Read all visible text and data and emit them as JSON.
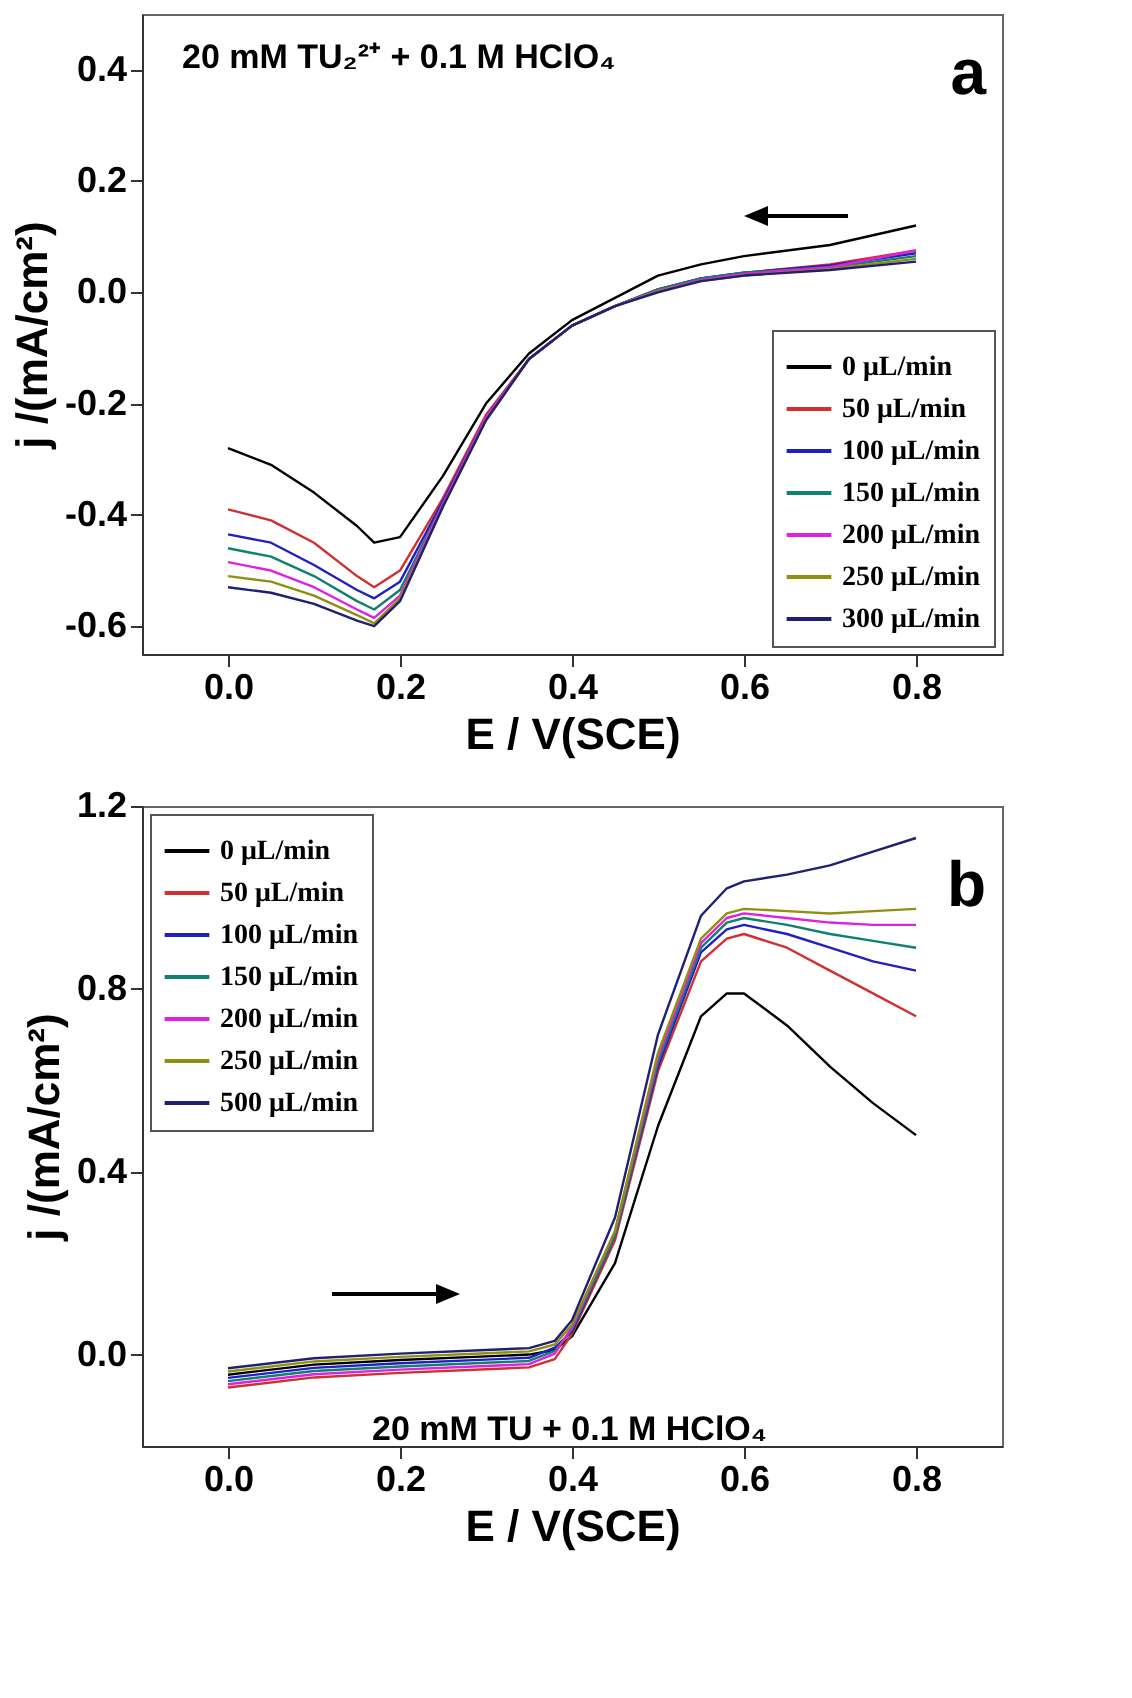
{
  "chart_data": [
    {
      "type": "line",
      "xlabel": "E / V(SCE)",
      "ylabel": "j /(mA/cm²)",
      "x": [
        0,
        0.05,
        0.1,
        0.15,
        0.17,
        0.2,
        0.25,
        0.3,
        0.35,
        0.4,
        0.45,
        0.5,
        0.55,
        0.6,
        0.7,
        0.8
      ],
      "series": [
        {
          "name": "0 μL/min",
          "color": "#000000",
          "values": [
            -0.28,
            -0.31,
            -0.36,
            -0.42,
            -0.45,
            -0.44,
            -0.33,
            -0.2,
            -0.11,
            -0.05,
            -0.01,
            0.03,
            0.05,
            0.065,
            0.085,
            0.12
          ]
        },
        {
          "name": "50 μL/min",
          "color": "#d03030",
          "values": [
            -0.39,
            -0.41,
            -0.45,
            -0.51,
            -0.53,
            -0.5,
            -0.37,
            -0.22,
            -0.12,
            -0.06,
            -0.025,
            0.005,
            0.025,
            0.035,
            0.05,
            0.075
          ]
        },
        {
          "name": "100 μL/min",
          "color": "#2020c0",
          "values": [
            -0.435,
            -0.45,
            -0.49,
            -0.535,
            -0.55,
            -0.52,
            -0.375,
            -0.225,
            -0.12,
            -0.06,
            -0.025,
            0.005,
            0.025,
            0.035,
            0.048,
            0.07
          ]
        },
        {
          "name": "150 μL/min",
          "color": "#108070",
          "values": [
            -0.46,
            -0.475,
            -0.51,
            -0.555,
            -0.57,
            -0.535,
            -0.38,
            -0.225,
            -0.12,
            -0.06,
            -0.025,
            0.005,
            0.025,
            0.035,
            0.045,
            0.065
          ]
        },
        {
          "name": "200 μL/min",
          "color": "#e020e0",
          "values": [
            -0.485,
            -0.5,
            -0.53,
            -0.57,
            -0.585,
            -0.545,
            -0.38,
            -0.225,
            -0.12,
            -0.06,
            -0.025,
            0.003,
            0.022,
            0.033,
            0.045,
            0.075
          ]
        },
        {
          "name": "250 μL/min",
          "color": "#909010",
          "values": [
            -0.51,
            -0.52,
            -0.545,
            -0.58,
            -0.595,
            -0.55,
            -0.385,
            -0.23,
            -0.12,
            -0.06,
            -0.025,
            0.002,
            0.02,
            0.03,
            0.042,
            0.06
          ]
        },
        {
          "name": "300 μL/min",
          "color": "#202070",
          "values": [
            -0.53,
            -0.54,
            -0.56,
            -0.59,
            -0.6,
            -0.555,
            -0.385,
            -0.23,
            -0.12,
            -0.06,
            -0.025,
            0,
            0.02,
            0.03,
            0.04,
            0.055
          ]
        }
      ],
      "xlim": [
        -0.1,
        0.9
      ],
      "xticks": [
        {
          "value": 0,
          "label": "0.0"
        },
        0.2,
        0.4,
        0.6,
        0.8
      ],
      "ylim": [
        -0.65,
        0.5
      ],
      "yticks": [
        -0.6,
        -0.4,
        -0.2,
        {
          "value": 0,
          "label": "0.0"
        },
        0.2,
        0.4
      ],
      "legend": "bottom right",
      "grid": false,
      "annotations": [
        "20 mM TU₂²⁺ + 0.1 M HClO₄",
        "a"
      ]
    },
    {
      "type": "line",
      "xlabel": "E / V(SCE)",
      "ylabel": "j /(mA/cm²)",
      "x": [
        0,
        0.1,
        0.2,
        0.3,
        0.35,
        0.38,
        0.4,
        0.45,
        0.5,
        0.55,
        0.58,
        0.6,
        0.65,
        0.7,
        0.75,
        0.8
      ],
      "series": [
        {
          "name": "0 μL/min",
          "color": "#000000",
          "values": [
            -0.044,
            -0.022,
            -0.012,
            -0.004,
            0,
            0.01,
            0.04,
            0.2,
            0.5,
            0.74,
            0.79,
            0.79,
            0.72,
            0.63,
            0.55,
            0.48
          ]
        },
        {
          "name": "50 μL/min",
          "color": "#d03030",
          "values": [
            -0.072,
            -0.05,
            -0.04,
            -0.032,
            -0.028,
            -0.01,
            0.045,
            0.25,
            0.62,
            0.86,
            0.91,
            0.92,
            0.89,
            0.84,
            0.79,
            0.74
          ]
        },
        {
          "name": "100 μL/min",
          "color": "#2020c0",
          "values": [
            -0.051,
            -0.029,
            -0.019,
            -0.011,
            -0.007,
            0.015,
            0.05,
            0.26,
            0.63,
            0.88,
            0.93,
            0.94,
            0.92,
            0.89,
            0.86,
            0.84
          ]
        },
        {
          "name": "150 μL/min",
          "color": "#108070",
          "values": [
            -0.058,
            -0.036,
            -0.026,
            -0.018,
            -0.014,
            0.008,
            0.055,
            0.26,
            0.64,
            0.89,
            0.945,
            0.955,
            0.94,
            0.92,
            0.905,
            0.89
          ]
        },
        {
          "name": "200 μL/min",
          "color": "#e020e0",
          "values": [
            -0.065,
            -0.043,
            -0.033,
            -0.025,
            -0.021,
            0.002,
            0.06,
            0.27,
            0.65,
            0.9,
            0.955,
            0.965,
            0.955,
            0.945,
            0.94,
            0.94
          ]
        },
        {
          "name": "250 μL/min",
          "color": "#909010",
          "values": [
            -0.037,
            -0.015,
            -0.005,
            0.003,
            0.007,
            0.022,
            0.065,
            0.27,
            0.66,
            0.91,
            0.965,
            0.975,
            0.97,
            0.965,
            0.97,
            0.975
          ]
        },
        {
          "name": "500 μL/min",
          "color": "#202070",
          "values": [
            -0.03,
            -0.008,
            0.002,
            0.01,
            0.014,
            0.03,
            0.075,
            0.3,
            0.7,
            0.96,
            1.02,
            1.035,
            1.05,
            1.07,
            1.1,
            1.13
          ]
        }
      ],
      "xlim": [
        -0.1,
        0.9
      ],
      "xticks": [
        {
          "value": 0,
          "label": "0.0"
        },
        0.2,
        0.4,
        0.6,
        0.8
      ],
      "ylim": [
        -0.2,
        1.2
      ],
      "yticks": [
        {
          "value": 0,
          "label": "0.0"
        },
        0.4,
        0.8,
        1.2
      ],
      "legend": "top left",
      "grid": false,
      "annotations": [
        "20 mM TU + 0.1 M HClO₄",
        "b"
      ]
    }
  ]
}
